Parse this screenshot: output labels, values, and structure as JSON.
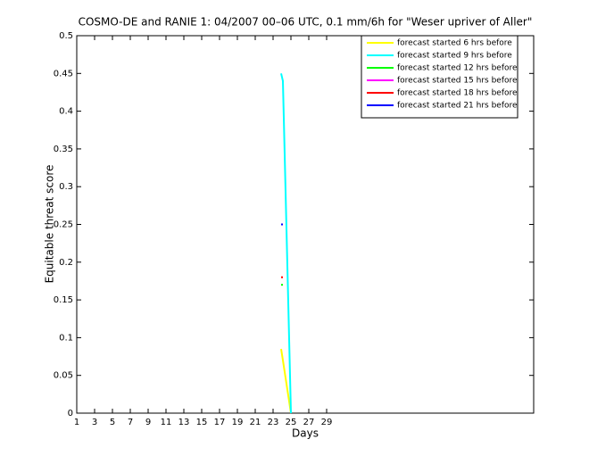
{
  "chart_data": {
    "type": "line",
    "title": "COSMO-DE and RANIE 1: 04/2007 00–06 UTC, 0.1 mm/6h for \"Weser upriver of Aller\"",
    "x_label": "Days",
    "y_label": "Equitable threat score",
    "x": [
      23.9,
      24.1,
      25
    ],
    "series": [
      {
        "name": "forecast started 6 hrs before",
        "color": "#ffff00",
        "values": [
          0.085,
          0.07,
          0
        ]
      },
      {
        "name": "forecast started 9 hrs before",
        "color": "#00ffff",
        "values": [
          0.45,
          0.44,
          0
        ]
      },
      {
        "name": "forecast started 12 hrs before",
        "color": "#00ff00",
        "values": [
          0.17,
          0.17,
          null
        ]
      },
      {
        "name": "forecast started 15 hrs before",
        "color": "#ff00ff",
        "values": [
          null,
          null,
          null
        ]
      },
      {
        "name": "forecast started 18 hrs before",
        "color": "#ff0000",
        "values": [
          0.18,
          0.18,
          null
        ]
      },
      {
        "name": "forecast started 21 hrs before",
        "color": "#0000ff",
        "values": [
          0.25,
          0.25,
          null
        ]
      }
    ],
    "xlim": [
      1,
      52.2
    ],
    "xticks": [
      1,
      3,
      5,
      7,
      9,
      11,
      13,
      15,
      17,
      19,
      21,
      23,
      25,
      27,
      29
    ],
    "ylim": [
      0,
      0.5
    ],
    "yticks": [
      0,
      0.05,
      0.1,
      0.15,
      0.2,
      0.25,
      0.3,
      0.35,
      0.4,
      0.45,
      0.5
    ],
    "legend": "top-right"
  }
}
